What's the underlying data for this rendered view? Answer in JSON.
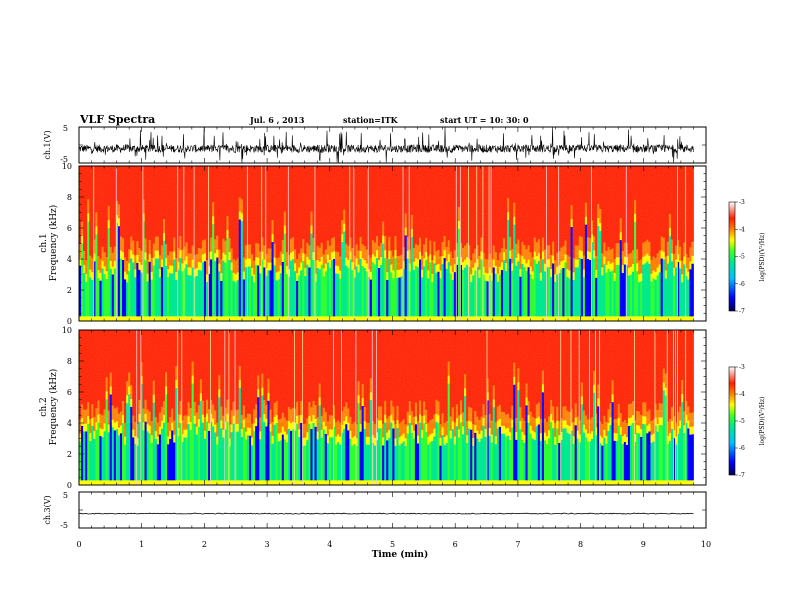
{
  "header": {
    "title": "VLF Spectra",
    "date": "Jul. 6 , 2013",
    "station": "station=ITK",
    "start": "start UT =  10: 30: 0"
  },
  "panels": {
    "ch1_wave_label": "ch.1(V)",
    "ch1_spec_label": "ch.1",
    "ch2_spec_label": "ch.2",
    "ch3_wave_label": "ch.3(V)",
    "freq_label": "Frequency (kHz)",
    "time_label": "Time (min)",
    "cbar_label": "log(PSD)(V²/Hz)",
    "wave_ticks": [
      "5",
      "-5"
    ],
    "freq_ticks": [
      "0",
      "2",
      "4",
      "6",
      "8",
      "10"
    ],
    "time_ticks": [
      "0",
      "1",
      "2",
      "3",
      "4",
      "5",
      "6",
      "7",
      "8",
      "9",
      "10"
    ],
    "cbar_ticks": [
      "-3",
      "-4",
      "-5",
      "-6",
      "-7"
    ]
  },
  "chart_data": [
    {
      "type": "line",
      "title": "VLF Spectra",
      "ylabel": "ch.1(V)",
      "xlim": [
        0,
        10
      ],
      "ylim": [
        -5,
        5
      ],
      "description_values": {
        "mean": -1,
        "noise_range": [
          -3,
          2.5
        ]
      }
    },
    {
      "type": "heatmap",
      "ylabel": "ch.1 Frequency (kHz)",
      "xlim": [
        0,
        10
      ],
      "ylim": [
        0,
        10
      ],
      "data_extent_x": [
        0,
        9.8
      ],
      "clim": [
        -7,
        -3
      ],
      "colorbar_label": "log(PSD)(V²/Hz)",
      "colors": [
        "#000060",
        "#0000ff",
        "#00c8ff",
        "#00e890",
        "#30ff30",
        "#ffff00",
        "#ff8000",
        "#ff2000",
        "#ff6060",
        "#ffd0d0"
      ]
    },
    {
      "type": "heatmap",
      "ylabel": "ch.2 Frequency (kHz)",
      "xlim": [
        0,
        10
      ],
      "ylim": [
        0,
        10
      ],
      "data_extent_x": [
        0,
        9.8
      ],
      "clim": [
        -7,
        -3
      ],
      "colorbar_label": "log(PSD)(V²/Hz)"
    },
    {
      "type": "line",
      "ylabel": "ch.3(V)",
      "xlabel": "Time (min)",
      "xlim": [
        0,
        10
      ],
      "ylim": [
        -5,
        5
      ],
      "description_values": {
        "mean": -1
      }
    }
  ]
}
